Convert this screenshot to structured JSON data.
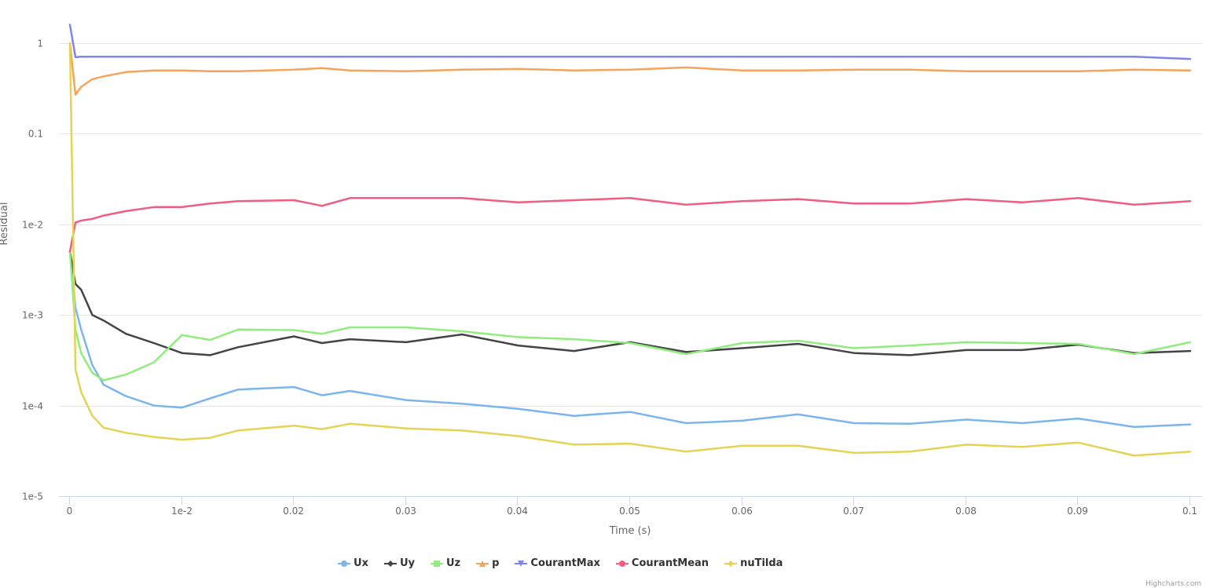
{
  "chart_data": {
    "type": "line",
    "title": "",
    "xlabel": "Time (s)",
    "ylabel": "Residual",
    "yscale": "log",
    "xlim": [
      0,
      0.1
    ],
    "ylim": [
      1e-05,
      1
    ],
    "grid": true,
    "legend_position": "bottom-center",
    "x_ticks": [
      0,
      0.01,
      0.02,
      0.03,
      0.04,
      0.05,
      0.06,
      0.07,
      0.08,
      0.09,
      0.1
    ],
    "x_tick_labels": [
      "0",
      "1e-2",
      "0.02",
      "0.03",
      "0.04",
      "0.05",
      "0.06",
      "0.07",
      "0.08",
      "0.09",
      "0.1"
    ],
    "y_ticks": [
      1,
      0.1,
      0.01,
      0.001,
      0.0001,
      1e-05
    ],
    "y_tick_labels": [
      "1",
      "0.1",
      "1e-2",
      "1e-3",
      "1e-4",
      "1e-5"
    ],
    "x": [
      0,
      0.0005,
      0.001,
      0.002,
      0.003,
      0.005,
      0.0075,
      0.01,
      0.0125,
      0.015,
      0.02,
      0.0225,
      0.025,
      0.03,
      0.035,
      0.04,
      0.045,
      0.05,
      0.055,
      0.06,
      0.065,
      0.07,
      0.075,
      0.08,
      0.085,
      0.09,
      0.095,
      0.1
    ],
    "series": [
      {
        "name": "Ux",
        "color": "#7cb5ec",
        "marker": "circle",
        "values": [
          0.005,
          0.0012,
          0.00069,
          0.00028,
          0.00017,
          0.000127,
          0.0001,
          9.5e-05,
          0.00012,
          0.00015,
          0.00016,
          0.00013,
          0.000145,
          0.000115,
          0.000105,
          9.2e-05,
          7.7e-05,
          8.5e-05,
          6.4e-05,
          6.8e-05,
          8e-05,
          6.4e-05,
          6.3e-05,
          7e-05,
          6.4e-05,
          7.2e-05,
          5.8e-05,
          6.2e-05
        ]
      },
      {
        "name": "Uy",
        "color": "#434348",
        "marker": "diamond",
        "values": [
          0.005,
          0.0022,
          0.0019,
          0.001,
          0.00087,
          0.00062,
          0.00049,
          0.00038,
          0.00036,
          0.00044,
          0.00058,
          0.00049,
          0.00054,
          0.0005,
          0.00061,
          0.00046,
          0.0004,
          0.0005,
          0.00039,
          0.00043,
          0.00048,
          0.00038,
          0.00036,
          0.00041,
          0.00041,
          0.00047,
          0.00038,
          0.0004
        ]
      },
      {
        "name": "Uz",
        "color": "#90ed7d",
        "marker": "square",
        "values": [
          0.005,
          0.00069,
          0.00038,
          0.00023,
          0.00019,
          0.00022,
          0.0003,
          0.0006,
          0.00053,
          0.00069,
          0.00068,
          0.00062,
          0.00073,
          0.00073,
          0.00066,
          0.00057,
          0.00054,
          0.00049,
          0.00037,
          0.00049,
          0.00052,
          0.00043,
          0.00046,
          0.0005,
          0.00049,
          0.00048,
          0.00037,
          0.0005
        ]
      },
      {
        "name": "p",
        "color": "#f7a35c",
        "marker": "triangle",
        "values": [
          1,
          0.27,
          0.33,
          0.4,
          0.43,
          0.48,
          0.5,
          0.5,
          0.49,
          0.49,
          0.51,
          0.53,
          0.5,
          0.49,
          0.51,
          0.52,
          0.5,
          0.51,
          0.54,
          0.5,
          0.5,
          0.51,
          0.51,
          0.49,
          0.49,
          0.49,
          0.51,
          0.5
        ]
      },
      {
        "name": "CourantMax",
        "color": "#8085e9",
        "marker": "triangle-down",
        "values": [
          1.6,
          0.7,
          0.71,
          0.71,
          0.71,
          0.71,
          0.71,
          0.71,
          0.71,
          0.71,
          0.71,
          0.71,
          0.71,
          0.71,
          0.71,
          0.71,
          0.71,
          0.71,
          0.71,
          0.71,
          0.71,
          0.71,
          0.71,
          0.71,
          0.71,
          0.71,
          0.71,
          0.67
        ]
      },
      {
        "name": "CourantMean",
        "color": "#f15c80",
        "marker": "circle",
        "values": [
          0.005,
          0.0105,
          0.011,
          0.0115,
          0.0125,
          0.014,
          0.0155,
          0.0155,
          0.017,
          0.018,
          0.0185,
          0.016,
          0.0195,
          0.0195,
          0.0195,
          0.0175,
          0.0185,
          0.0195,
          0.0165,
          0.018,
          0.019,
          0.017,
          0.017,
          0.019,
          0.0175,
          0.0195,
          0.0165,
          0.018
        ]
      },
      {
        "name": "nuTilda",
        "color": "#e4d354",
        "marker": "diamond",
        "values": [
          1,
          0.00025,
          0.00014,
          7.7e-05,
          5.7e-05,
          5e-05,
          4.5e-05,
          4.2e-05,
          4.4e-05,
          5.3e-05,
          6e-05,
          5.5e-05,
          6.3e-05,
          5.6e-05,
          5.3e-05,
          4.6e-05,
          3.7e-05,
          3.8e-05,
          3.1e-05,
          3.6e-05,
          3.6e-05,
          3e-05,
          3.1e-05,
          3.7e-05,
          3.5e-05,
          3.9e-05,
          2.8e-05,
          3.1e-05
        ]
      }
    ]
  },
  "credits": "Highcharts.com"
}
